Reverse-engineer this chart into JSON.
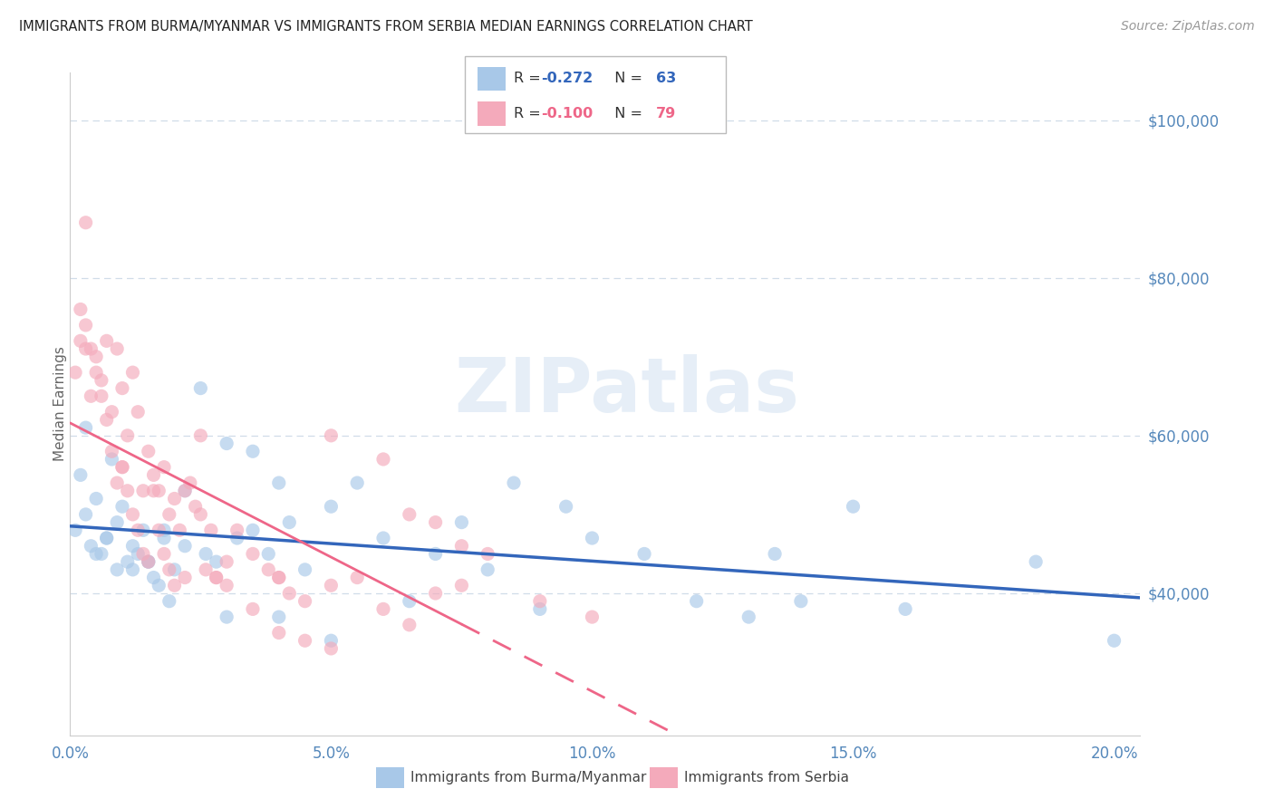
{
  "title": "IMMIGRANTS FROM BURMA/MYANMAR VS IMMIGRANTS FROM SERBIA MEDIAN EARNINGS CORRELATION CHART",
  "source": "Source: ZipAtlas.com",
  "ylabel": "Median Earnings",
  "watermark": "ZIPatlas",
  "blue_color": "#a8c8e8",
  "pink_color": "#f4aabb",
  "blue_line_color": "#3366bb",
  "pink_line_color": "#ee6688",
  "title_color": "#333333",
  "axis_color": "#5588bb",
  "grid_color": "#d0dce8",
  "xlim": [
    0.0,
    0.205
  ],
  "ylim": [
    22000,
    106000
  ],
  "yticks": [
    40000,
    60000,
    80000,
    100000
  ],
  "yticklabels": [
    "$40,000",
    "$60,000",
    "$80,000",
    "$100,000"
  ],
  "xticks": [
    0.0,
    0.05,
    0.1,
    0.15,
    0.2
  ],
  "xticklabels": [
    "0.0%",
    "5.0%",
    "10.0%",
    "15.0%",
    "20.0%"
  ],
  "legend_r1": "R = -0.272",
  "legend_n1": "N = 63",
  "legend_r2": "R = -0.100",
  "legend_n2": "N = 79",
  "blue_scatter_x": [
    0.001,
    0.002,
    0.003,
    0.004,
    0.005,
    0.006,
    0.007,
    0.008,
    0.009,
    0.01,
    0.011,
    0.012,
    0.013,
    0.014,
    0.015,
    0.016,
    0.017,
    0.018,
    0.019,
    0.02,
    0.022,
    0.025,
    0.028,
    0.03,
    0.032,
    0.035,
    0.038,
    0.04,
    0.042,
    0.045,
    0.05,
    0.055,
    0.06,
    0.065,
    0.07,
    0.075,
    0.08,
    0.085,
    0.09,
    0.095,
    0.1,
    0.11,
    0.12,
    0.13,
    0.14,
    0.15,
    0.16,
    0.185,
    0.2,
    0.003,
    0.005,
    0.007,
    0.009,
    0.012,
    0.015,
    0.018,
    0.022,
    0.026,
    0.03,
    0.035,
    0.04,
    0.05,
    0.135
  ],
  "blue_scatter_y": [
    48000,
    55000,
    50000,
    46000,
    52000,
    45000,
    47000,
    57000,
    43000,
    51000,
    44000,
    46000,
    45000,
    48000,
    44000,
    42000,
    41000,
    47000,
    39000,
    43000,
    46000,
    66000,
    44000,
    59000,
    47000,
    58000,
    45000,
    54000,
    49000,
    43000,
    51000,
    54000,
    47000,
    39000,
    45000,
    49000,
    43000,
    54000,
    38000,
    51000,
    47000,
    45000,
    39000,
    37000,
    39000,
    51000,
    38000,
    44000,
    34000,
    61000,
    45000,
    47000,
    49000,
    43000,
    44000,
    48000,
    53000,
    45000,
    37000,
    48000,
    37000,
    34000,
    45000
  ],
  "pink_scatter_x": [
    0.001,
    0.002,
    0.003,
    0.004,
    0.005,
    0.006,
    0.007,
    0.008,
    0.009,
    0.01,
    0.011,
    0.012,
    0.013,
    0.014,
    0.015,
    0.016,
    0.017,
    0.018,
    0.019,
    0.02,
    0.021,
    0.022,
    0.023,
    0.024,
    0.025,
    0.026,
    0.027,
    0.028,
    0.03,
    0.032,
    0.035,
    0.038,
    0.04,
    0.042,
    0.045,
    0.05,
    0.055,
    0.06,
    0.065,
    0.07,
    0.075,
    0.002,
    0.003,
    0.004,
    0.005,
    0.006,
    0.007,
    0.008,
    0.009,
    0.01,
    0.011,
    0.012,
    0.013,
    0.014,
    0.015,
    0.016,
    0.017,
    0.018,
    0.019,
    0.02,
    0.022,
    0.025,
    0.028,
    0.03,
    0.035,
    0.04,
    0.045,
    0.05,
    0.06,
    0.065,
    0.07,
    0.075,
    0.08,
    0.09,
    0.1,
    0.003,
    0.05,
    0.01,
    0.04
  ],
  "pink_scatter_y": [
    68000,
    72000,
    71000,
    65000,
    70000,
    67000,
    72000,
    63000,
    71000,
    66000,
    60000,
    68000,
    63000,
    53000,
    58000,
    55000,
    53000,
    56000,
    50000,
    52000,
    48000,
    53000,
    54000,
    51000,
    60000,
    43000,
    48000,
    42000,
    44000,
    48000,
    45000,
    43000,
    42000,
    40000,
    39000,
    41000,
    42000,
    38000,
    36000,
    40000,
    41000,
    76000,
    74000,
    71000,
    68000,
    65000,
    62000,
    58000,
    54000,
    56000,
    53000,
    50000,
    48000,
    45000,
    44000,
    53000,
    48000,
    45000,
    43000,
    41000,
    42000,
    50000,
    42000,
    41000,
    38000,
    35000,
    34000,
    33000,
    57000,
    50000,
    49000,
    46000,
    45000,
    39000,
    37000,
    87000,
    60000,
    56000,
    42000
  ]
}
